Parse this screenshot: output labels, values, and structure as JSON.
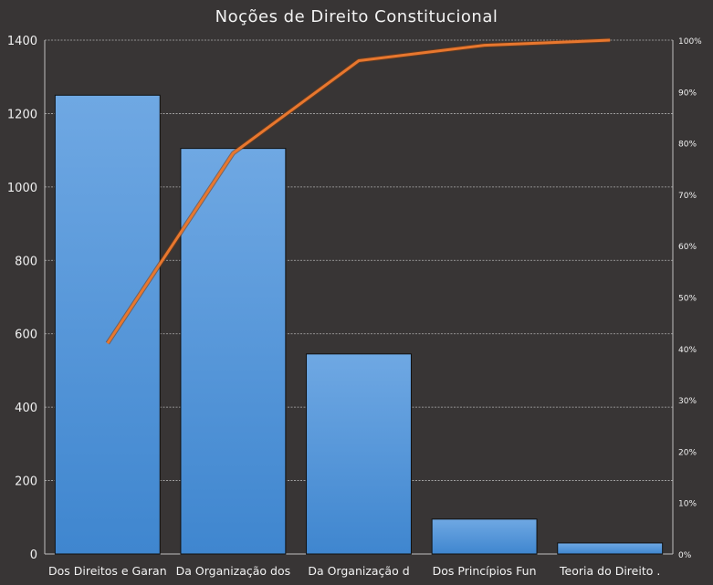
{
  "chart_data": {
    "type": "bar",
    "title": "Noções de Direito Constitucional",
    "categories": [
      "Dos Direitos e Garan",
      "Da Organização dos",
      "Da Organização d",
      "Dos Princípios Fun",
      "Teoria do Direito ."
    ],
    "series": [
      {
        "type": "bar",
        "values": [
          1250,
          1105,
          545,
          95,
          30
        ],
        "color": "#4a8fd6"
      },
      {
        "type": "line",
        "axis": "right",
        "values": [
          41,
          78,
          96,
          99,
          100
        ],
        "color": "#e8772e"
      }
    ],
    "ylim": [
      0,
      1400
    ],
    "yticks": [
      0,
      200,
      400,
      600,
      800,
      1000,
      1200,
      1400
    ],
    "y2lim": [
      0,
      100
    ],
    "y2ticks": [
      "0%",
      "10%",
      "20%",
      "30%",
      "40%",
      "50%",
      "60%",
      "70%",
      "80%",
      "90%",
      "100%"
    ],
    "grid": true,
    "legend": "none"
  }
}
